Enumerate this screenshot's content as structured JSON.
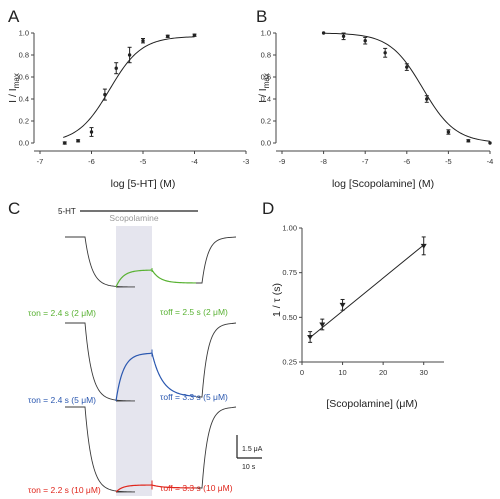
{
  "chart_data": [
    {
      "panel": "A",
      "type": "scatter",
      "xlabel": "log [5-HT] (M)",
      "ylabel": "I / I",
      "ylabel_sub": "max",
      "xlim": [
        -7,
        -3
      ],
      "ylim": [
        0,
        1.0
      ],
      "xticks": [
        -7,
        -6,
        -5,
        -4,
        -3
      ],
      "xtick_labels": [
        "-7",
        "-6",
        "-5",
        "-4",
        "-3"
      ],
      "yticks": [
        0.0,
        0.2,
        0.4,
        0.6,
        0.8,
        1.0
      ],
      "ytick_labels": [
        "0.0",
        "0.2",
        "0.4",
        "0.6",
        "0.8",
        "1.0"
      ],
      "points": [
        {
          "x": -6.52,
          "y": 0.0,
          "err": 0.01
        },
        {
          "x": -6.26,
          "y": 0.02,
          "err": 0.01
        },
        {
          "x": -6.0,
          "y": 0.1,
          "err": 0.04
        },
        {
          "x": -5.74,
          "y": 0.44,
          "err": 0.05
        },
        {
          "x": -5.52,
          "y": 0.68,
          "err": 0.05
        },
        {
          "x": -5.26,
          "y": 0.8,
          "err": 0.07
        },
        {
          "x": -5.0,
          "y": 0.93,
          "err": 0.02
        },
        {
          "x": -4.52,
          "y": 0.97,
          "err": 0.01
        },
        {
          "x": -4.0,
          "y": 0.98,
          "err": 0.01
        }
      ],
      "fit": {
        "bottom": 0.0,
        "top": 0.97,
        "logEC50": -5.65,
        "hill": 1.4,
        "direction": "rising",
        "x_from": -6.55,
        "x_to": -4.0
      }
    },
    {
      "panel": "B",
      "type": "scatter",
      "xlabel": "log [Scopolamine] (M)",
      "ylabel": "I / I",
      "ylabel_sub": "max",
      "xlim": [
        -9,
        -4
      ],
      "ylim": [
        0,
        1.0
      ],
      "xticks": [
        -9,
        -8,
        -7,
        -6,
        -5,
        -4
      ],
      "xtick_labels": [
        "-9",
        "-8",
        "-7",
        "-6",
        "-5",
        "-4"
      ],
      "yticks": [
        0.0,
        0.2,
        0.4,
        0.6,
        0.8,
        1.0
      ],
      "ytick_labels": [
        "0.0",
        "0.2",
        "0.4",
        "0.6",
        "0.8",
        "1.0"
      ],
      "points": [
        {
          "x": -8.0,
          "y": 1.0,
          "err": 0.0
        },
        {
          "x": -7.52,
          "y": 0.97,
          "err": 0.03
        },
        {
          "x": -7.0,
          "y": 0.93,
          "err": 0.03
        },
        {
          "x": -6.52,
          "y": 0.82,
          "err": 0.04
        },
        {
          "x": -6.0,
          "y": 0.69,
          "err": 0.03
        },
        {
          "x": -5.52,
          "y": 0.4,
          "err": 0.03
        },
        {
          "x": -5.0,
          "y": 0.1,
          "err": 0.02
        },
        {
          "x": -4.52,
          "y": 0.02,
          "err": 0.01
        },
        {
          "x": -4.0,
          "y": 0.0,
          "err": 0.0
        }
      ],
      "fit": {
        "bottom": 0.0,
        "top": 1.0,
        "logEC50": -5.62,
        "hill": 1.1,
        "direction": "falling",
        "x_from": -8.0,
        "x_to": -4.0
      }
    },
    {
      "panel": "D",
      "type": "scatter",
      "xlabel": "[Scopolamine] (μM)",
      "ylabel": "1 / τ (s)",
      "xlim": [
        0,
        35
      ],
      "ylim": [
        0.25,
        1.0
      ],
      "xticks": [
        0,
        10,
        20,
        30
      ],
      "xtick_labels": [
        "0",
        "10",
        "20",
        "30"
      ],
      "yticks": [
        0.25,
        0.5,
        0.75,
        1.0
      ],
      "ytick_labels": [
        "0.25",
        "0.50",
        "0.75",
        "1.00"
      ],
      "points": [
        {
          "x": 2,
          "y": 0.39,
          "err": 0.03
        },
        {
          "x": 5,
          "y": 0.46,
          "err": 0.03
        },
        {
          "x": 10,
          "y": 0.57,
          "err": 0.03
        },
        {
          "x": 30,
          "y": 0.9,
          "err": 0.05
        }
      ],
      "fit": {
        "type": "linear",
        "slope": 0.0185,
        "intercept": 0.35,
        "x_from": 2,
        "x_to": 30
      }
    }
  ],
  "panels": {
    "A": "A",
    "B": "B",
    "C": "C",
    "D": "D"
  },
  "traces": {
    "agonist_label": "5-HT",
    "antagonist_label": "Scopolamine",
    "concentrations_uM": [
      2,
      5,
      10
    ],
    "colors": [
      "#59b233",
      "#2b58b0",
      "#e0261c"
    ],
    "annotations": {
      "on": [
        "τon = 2.4 s (2 μM)",
        "τon = 2.4 s (5 μM)",
        "τon = 2.2 s (10 μM)"
      ],
      "off": [
        "τoff = 2.5 s (2 μM)",
        "τoff = 3.3 s (5 μM)",
        "τoff = 3.3 s (10 μM)"
      ]
    },
    "scale_current": "1.5 μA",
    "scale_time": "10 s"
  }
}
